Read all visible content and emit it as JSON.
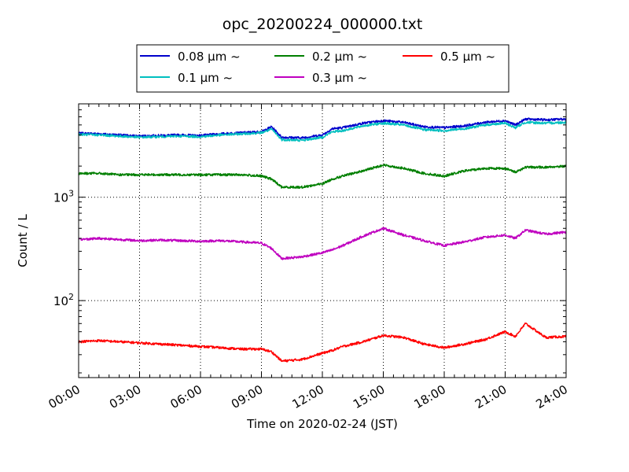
{
  "chart_data": {
    "type": "line",
    "title": "opc_20200224_000000.txt",
    "xlabel": "Time on 2020-02-24 (JST)",
    "ylabel": "Count / L",
    "yscale": "log",
    "xlim": [
      "00:00",
      "24:00"
    ],
    "ylim": [
      18,
      8000
    ],
    "grid": true,
    "legend_placement": "top-center",
    "x_ticks": [
      "00:00",
      "03:00",
      "06:00",
      "09:00",
      "12:00",
      "15:00",
      "18:00",
      "21:00",
      "24:00"
    ],
    "y_ticks": [
      {
        "value": 100,
        "label": "10",
        "sup": "2"
      },
      {
        "value": 1000,
        "label": "10",
        "sup": "3"
      }
    ],
    "x": [
      "00:00",
      "01:00",
      "02:00",
      "03:00",
      "04:00",
      "05:00",
      "06:00",
      "07:00",
      "08:00",
      "09:00",
      "09:30",
      "10:00",
      "11:00",
      "12:00",
      "12:30",
      "13:00",
      "14:00",
      "15:00",
      "16:00",
      "17:00",
      "18:00",
      "19:00",
      "20:00",
      "21:00",
      "21:30",
      "22:00",
      "23:00",
      "24:00"
    ],
    "series": [
      {
        "name": "0.08 μm ~",
        "color": "#0000cc",
        "values": [
          4150,
          4100,
          4000,
          3900,
          3950,
          4000,
          3950,
          4100,
          4200,
          4300,
          4800,
          3800,
          3750,
          4000,
          4600,
          4700,
          5200,
          5500,
          5300,
          4800,
          4700,
          4900,
          5300,
          5500,
          5000,
          5700,
          5600,
          5700
        ]
      },
      {
        "name": "0.1 μm ~",
        "color": "#00bfbf",
        "values": [
          4050,
          4000,
          3900,
          3800,
          3850,
          3900,
          3850,
          4000,
          4100,
          4200,
          4550,
          3600,
          3550,
          3800,
          4300,
          4400,
          4900,
          5200,
          5000,
          4500,
          4400,
          4600,
          5000,
          5200,
          4700,
          5300,
          5200,
          5300
        ]
      },
      {
        "name": "0.2 μm ~",
        "color": "#007f00",
        "values": [
          1700,
          1700,
          1650,
          1650,
          1650,
          1650,
          1650,
          1650,
          1650,
          1600,
          1500,
          1250,
          1250,
          1350,
          1500,
          1600,
          1800,
          2050,
          1900,
          1700,
          1600,
          1800,
          1900,
          1900,
          1750,
          1950,
          1950,
          2000
        ]
      },
      {
        "name": "0.3 μm ~",
        "color": "#bf00bf",
        "values": [
          390,
          400,
          390,
          380,
          385,
          380,
          375,
          380,
          370,
          360,
          320,
          255,
          265,
          290,
          310,
          340,
          420,
          500,
          430,
          380,
          340,
          370,
          410,
          430,
          400,
          480,
          440,
          460
        ]
      },
      {
        "name": "0.5 μm ~",
        "color": "#ff0000",
        "values": [
          40,
          41,
          40,
          39,
          38,
          37,
          36,
          35,
          34,
          34,
          32,
          26,
          27,
          31,
          33,
          36,
          40,
          46,
          44,
          38,
          35,
          38,
          42,
          50,
          45,
          60,
          44,
          45
        ]
      }
    ]
  }
}
